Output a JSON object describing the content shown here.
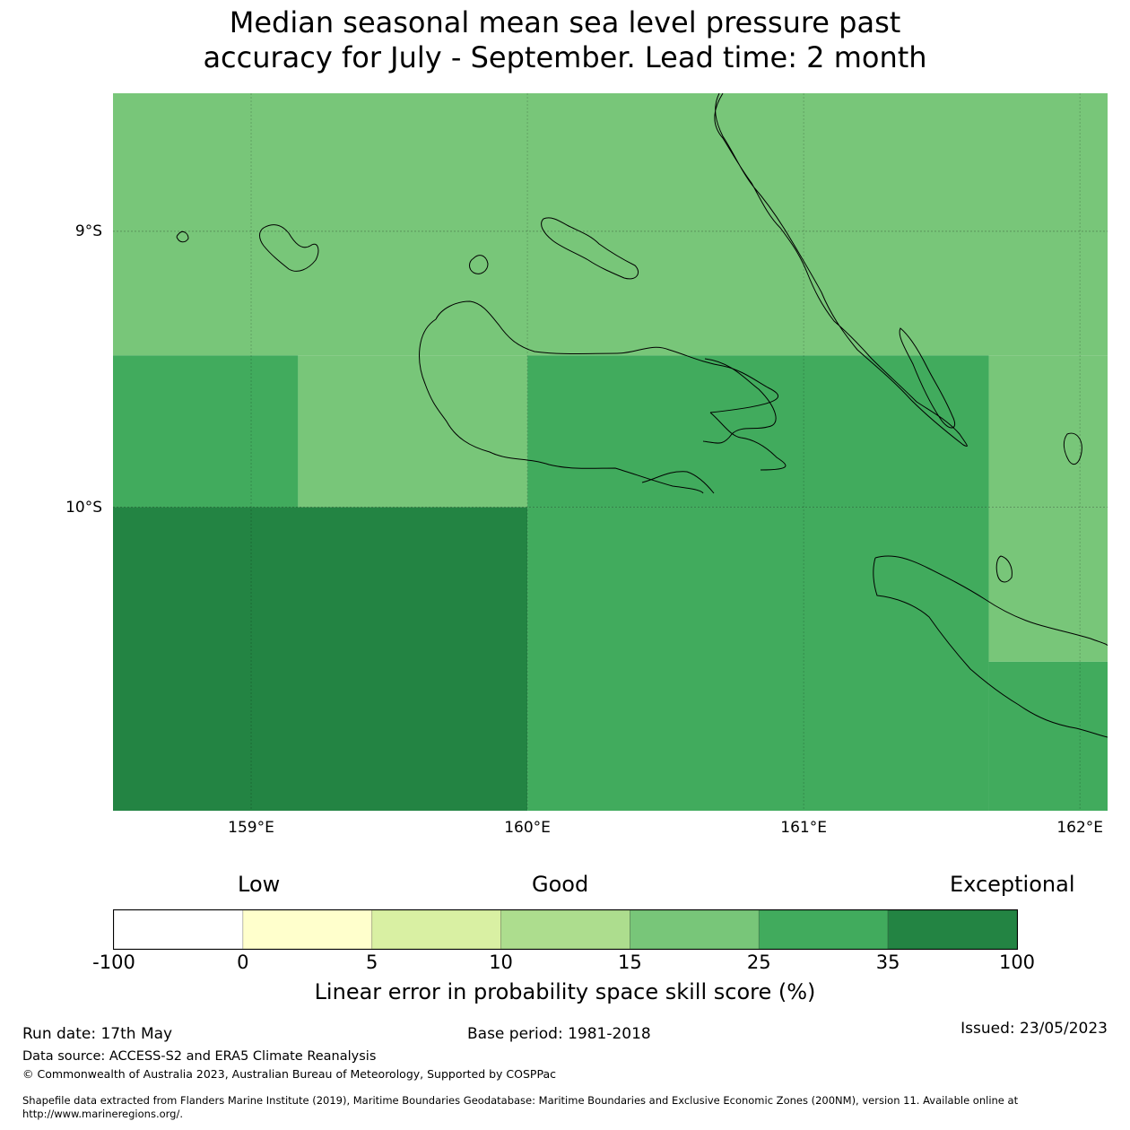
{
  "title_lines": [
    "Median seasonal mean sea level pressure past",
    "accuracy for July - September. Lead time: 2 month"
  ],
  "map": {
    "lon_range": [
      158.5,
      162.1
    ],
    "lat_range": [
      -11.1,
      -8.5
    ],
    "lon_ticks": [
      {
        "value": 159,
        "label": "159°E"
      },
      {
        "value": 160,
        "label": "160°E"
      },
      {
        "value": 161,
        "label": "161°E"
      },
      {
        "value": 162,
        "label": "162°E"
      }
    ],
    "lat_ticks": [
      {
        "value": -9,
        "label": "9°S"
      },
      {
        "value": -10,
        "label": "10°S"
      }
    ],
    "grid": true,
    "colors": {
      "15-25": "#78c679",
      "25-35": "#41ab5d",
      "35-100": "#238443"
    },
    "cells": [
      {
        "lon": [
          158.5,
          162.1
        ],
        "lat": [
          -9.45,
          -8.5
        ],
        "category": "15-25"
      },
      {
        "lon": [
          158.5,
          159.17
        ],
        "lat": [
          -10.0,
          -9.45
        ],
        "category": "25-35"
      },
      {
        "lon": [
          159.17,
          160.0
        ],
        "lat": [
          -10.0,
          -9.45
        ],
        "category": "15-25"
      },
      {
        "lon": [
          160.0,
          161.67
        ],
        "lat": [
          -10.0,
          -9.45
        ],
        "category": "25-35"
      },
      {
        "lon": [
          161.67,
          162.1
        ],
        "lat": [
          -10.0,
          -9.45
        ],
        "category": "15-25"
      },
      {
        "lon": [
          158.5,
          160.0
        ],
        "lat": [
          -11.1,
          -10.0
        ],
        "category": "35-100"
      },
      {
        "lon": [
          160.0,
          161.67
        ],
        "lat": [
          -11.1,
          -10.0
        ],
        "category": "25-35"
      },
      {
        "lon": [
          161.67,
          162.1
        ],
        "lat": [
          -10.56,
          -10.0
        ],
        "category": "15-25"
      },
      {
        "lon": [
          161.67,
          162.1
        ],
        "lat": [
          -11.1,
          -10.56
        ],
        "category": "25-35"
      }
    ]
  },
  "legend": {
    "categories": [
      {
        "label": "Low",
        "position": "left"
      },
      {
        "label": "Good",
        "position": "center"
      },
      {
        "label": "Exceptional",
        "position": "right"
      }
    ],
    "boundaries": [
      "-100",
      "0",
      "5",
      "10",
      "15",
      "25",
      "35",
      "100"
    ],
    "colors": [
      "#ffffff",
      "#ffffcc",
      "#d9f0a3",
      "#addd8e",
      "#78c679",
      "#41ab5d",
      "#238443"
    ],
    "title": "Linear error in probability space skill score (%)"
  },
  "footer": {
    "run_date": "Run date: 17th May",
    "base_period": "Base period: 1981-2018",
    "issued": "Issued: 23/05/2023",
    "data_source": "Data source: ACCESS-S2 and ERA5 Climate Reanalysis",
    "copyright": "© Commonwealth of Australia 2023, Australian Bureau of Meteorology, Supported by COSPPac",
    "shapefile_line1": "Shapefile data extracted from Flanders Marine Institute (2019), Maritime Boundaries Geodatabase: Maritime Boundaries and Exclusive Economic Zones (200NM), version 11. Available online at",
    "shapefile_line2": "http://www.marineregions.org/."
  }
}
